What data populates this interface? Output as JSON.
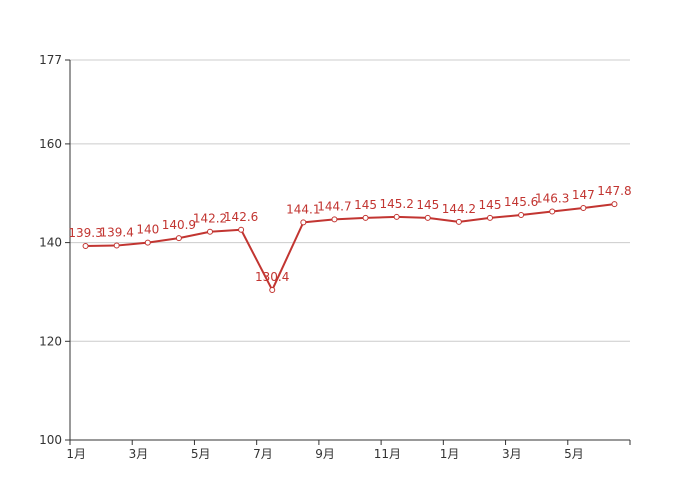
{
  "chart_data": {
    "type": "line",
    "categories": [
      "1月",
      "",
      "3月",
      "",
      "5月",
      "",
      "7月",
      "",
      "9月",
      "",
      "11月",
      "",
      "1月",
      "",
      "3月",
      "",
      "5月",
      ""
    ],
    "series": [
      {
        "values": [
          139.3,
          139.4,
          140,
          140.9,
          142.2,
          142.6,
          130.4,
          144.1,
          144.7,
          145,
          145.2,
          145,
          144.2,
          145,
          145.6,
          146.3,
          147,
          147.8
        ],
        "labels": [
          "139.3",
          "139.4",
          "140",
          "140.9",
          "142.2",
          "142.6",
          "130.4",
          "144.1",
          "144.7",
          "145",
          "145.2",
          "145",
          "144.2",
          "145",
          "145.6",
          "146.3",
          "147",
          "147.8"
        ]
      }
    ],
    "ylim": [
      100,
      177
    ],
    "yticks": [
      100,
      120,
      140,
      160,
      177
    ],
    "ytick_labels": [
      "100",
      "120",
      "140",
      "160",
      "177"
    ],
    "grid": true,
    "line_color": "#c23531"
  }
}
